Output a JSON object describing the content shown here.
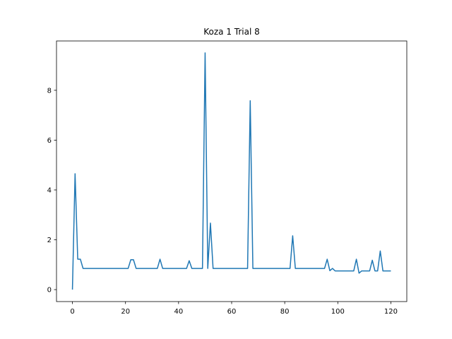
{
  "chart_data": {
    "type": "line",
    "title": "Koza 1 Trial 8",
    "xlabel": "",
    "ylabel": "",
    "xlim": [
      -6,
      126
    ],
    "ylim": [
      -0.48,
      9.98
    ],
    "xticks": [
      0,
      20,
      40,
      60,
      80,
      100,
      120
    ],
    "yticks": [
      0,
      2,
      4,
      6,
      8
    ],
    "grid": false,
    "line_color": "#1f77b4",
    "series": [
      {
        "x": [
          0,
          1,
          2,
          3,
          4,
          5,
          6,
          7,
          8,
          9,
          10,
          11,
          12,
          13,
          14,
          15,
          16,
          17,
          18,
          19,
          20,
          21,
          22,
          23,
          24,
          25,
          26,
          27,
          28,
          29,
          30,
          31,
          32,
          33,
          34,
          35,
          36,
          37,
          38,
          39,
          40,
          41,
          42,
          43,
          44,
          45,
          46,
          47,
          48,
          49,
          50,
          51,
          52,
          53,
          54,
          55,
          56,
          57,
          58,
          59,
          60,
          61,
          62,
          63,
          64,
          65,
          66,
          67,
          68,
          69,
          70,
          71,
          72,
          73,
          74,
          75,
          76,
          77,
          78,
          79,
          80,
          81,
          82,
          83,
          84,
          85,
          86,
          87,
          88,
          89,
          90,
          91,
          92,
          93,
          94,
          95,
          96,
          97,
          98,
          99,
          100,
          101,
          102,
          103,
          104,
          105,
          106,
          107,
          108,
          109,
          110,
          111,
          112,
          113,
          114,
          115,
          116,
          117,
          118,
          119,
          120
        ],
        "values": [
          0,
          4.65,
          1.22,
          1.22,
          0.85,
          0.85,
          0.85,
          0.85,
          0.85,
          0.85,
          0.85,
          0.85,
          0.85,
          0.85,
          0.85,
          0.85,
          0.85,
          0.85,
          0.85,
          0.85,
          0.85,
          0.85,
          1.2,
          1.2,
          0.85,
          0.85,
          0.85,
          0.85,
          0.85,
          0.85,
          0.85,
          0.85,
          0.85,
          1.22,
          0.85,
          0.85,
          0.85,
          0.85,
          0.85,
          0.85,
          0.85,
          0.85,
          0.85,
          0.85,
          1.16,
          0.85,
          0.85,
          0.85,
          0.85,
          0.85,
          9.5,
          0.85,
          2.67,
          0.85,
          0.85,
          0.85,
          0.85,
          0.85,
          0.85,
          0.85,
          0.85,
          0.85,
          0.85,
          0.85,
          0.85,
          0.85,
          0.85,
          7.58,
          0.85,
          0.85,
          0.85,
          0.85,
          0.85,
          0.85,
          0.85,
          0.85,
          0.85,
          0.85,
          0.85,
          0.85,
          0.85,
          0.85,
          0.85,
          2.16,
          0.85,
          0.85,
          0.85,
          0.85,
          0.85,
          0.85,
          0.85,
          0.85,
          0.85,
          0.85,
          0.85,
          0.85,
          1.22,
          0.76,
          0.85,
          0.75,
          0.75,
          0.75,
          0.75,
          0.75,
          0.75,
          0.75,
          0.75,
          1.22,
          0.66,
          0.75,
          0.75,
          0.75,
          0.75,
          1.18,
          0.75,
          0.75,
          1.55,
          0.75,
          0.75,
          0.75,
          0.75
        ]
      }
    ]
  }
}
